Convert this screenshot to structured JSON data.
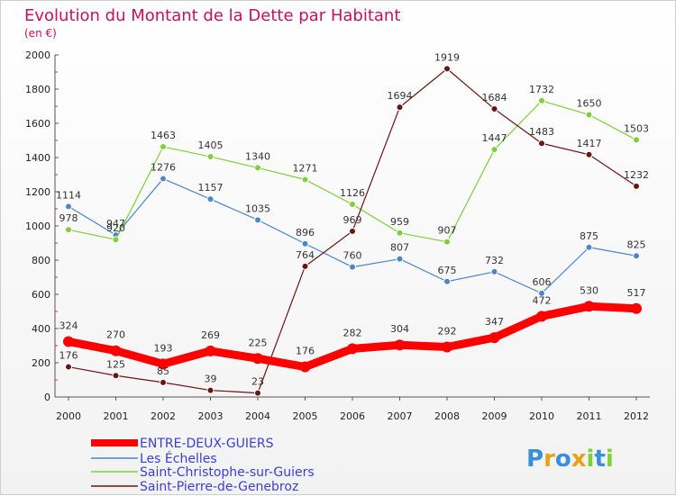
{
  "chart_data": {
    "type": "line",
    "title": "Evolution du Montant de la Dette par Habitant",
    "subtitle": "(en €)",
    "xlabel": "",
    "ylabel": "",
    "ylim": [
      0,
      2000
    ],
    "yticks": [
      0,
      200,
      400,
      600,
      800,
      1000,
      1200,
      1400,
      1600,
      1800,
      2000
    ],
    "x": [
      "2000",
      "2001",
      "2002",
      "2003",
      "2004",
      "2005",
      "2006",
      "2007",
      "2008",
      "2009",
      "2010",
      "2011",
      "2012"
    ],
    "grid": false,
    "legend": "bottom",
    "series": [
      {
        "name": "ENTRE-DEUX-GUIERS",
        "color": "#ff0000",
        "values": [
          324,
          270,
          193,
          269,
          225,
          176,
          282,
          304,
          292,
          347,
          472,
          530,
          517
        ]
      },
      {
        "name": "Les Échelles",
        "color": "#4a86c8",
        "values": [
          1114,
          947,
          1276,
          1157,
          1035,
          896,
          760,
          807,
          675,
          732,
          606,
          875,
          825
        ]
      },
      {
        "name": "Saint-Christophe-sur-Guiers",
        "color": "#7ecf3a",
        "values": [
          978,
          920,
          1463,
          1405,
          1340,
          1271,
          1126,
          959,
          907,
          1447,
          1732,
          1650,
          1503
        ]
      },
      {
        "name": "Saint-Pierre-de-Genebroz",
        "color": "#6b1414",
        "values": [
          176,
          125,
          85,
          39,
          23,
          764,
          969,
          1694,
          1919,
          1684,
          1483,
          1417,
          1232
        ]
      }
    ]
  },
  "logo": {
    "text": "Proxiti",
    "letters": [
      "P",
      "r",
      "o",
      "x",
      "i",
      "t",
      "i"
    ],
    "colors": [
      "#3a8fd9",
      "#e8a21a",
      "#3a8fd9",
      "#e8a21a",
      "#7ecf3a",
      "#3a8fd9",
      "#7ecf3a"
    ]
  }
}
